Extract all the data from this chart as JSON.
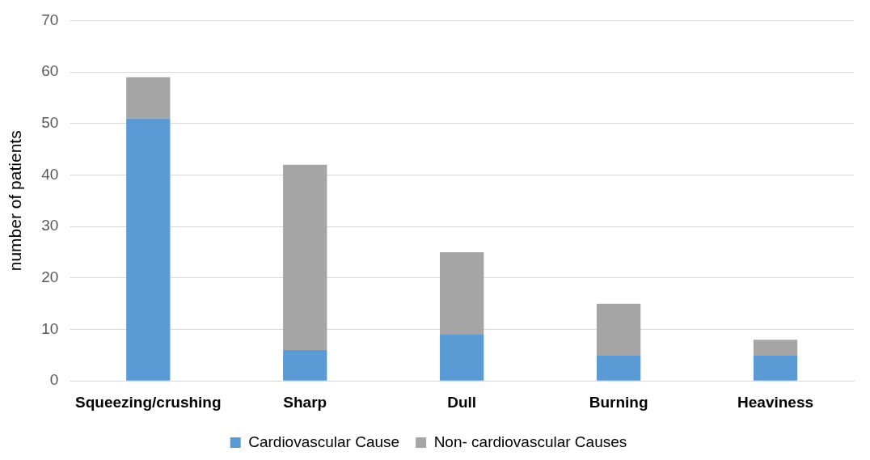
{
  "chart_data": {
    "type": "bar",
    "stacked": true,
    "ylabel": "number of patients",
    "categories": [
      "Squeezing/crushing",
      "Sharp",
      "Dull",
      "Burning",
      "Heaviness"
    ],
    "series": [
      {
        "name": "Cardiovascular Cause",
        "color": "#5b9bd5",
        "values": [
          51,
          6,
          9,
          5,
          5
        ]
      },
      {
        "name": "Non- cardiovascular Causes",
        "color": "#a5a5a5",
        "values": [
          8,
          36,
          16,
          10,
          3
        ]
      }
    ],
    "ylim": [
      0,
      70
    ],
    "yticks": [
      0,
      10,
      20,
      30,
      40,
      50,
      60,
      70
    ],
    "grid": "y",
    "legend": "bottom"
  }
}
